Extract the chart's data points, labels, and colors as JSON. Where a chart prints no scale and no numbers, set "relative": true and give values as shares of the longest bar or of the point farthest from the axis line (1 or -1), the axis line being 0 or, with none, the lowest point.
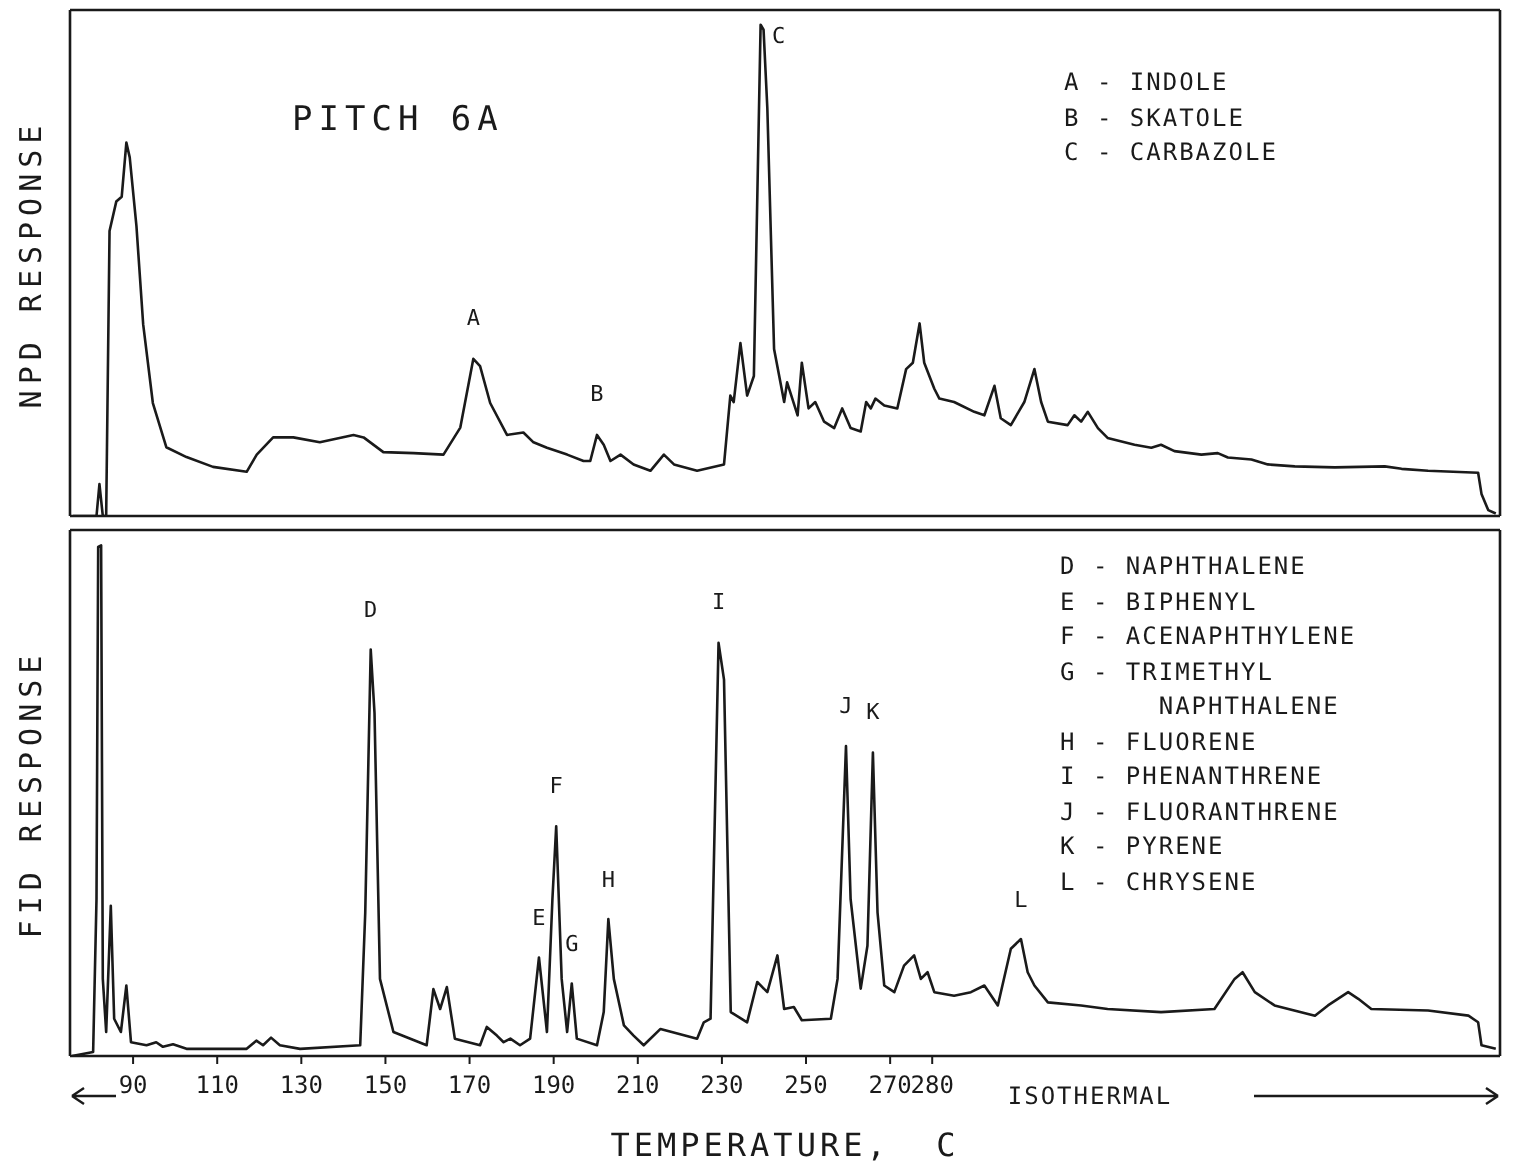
{
  "chart_data": [
    {
      "type": "line",
      "relative": true,
      "title": "PITCH 6A",
      "ylabel": "NPD RESPONSE",
      "color": "#1a1a1a",
      "xlim": [
        75,
        415
      ],
      "xticks": [
        90,
        110,
        130,
        150,
        170,
        190,
        210,
        230,
        250,
        270,
        280
      ],
      "tick_labels": false,
      "x": [
        75.7,
        81.3,
        82.0,
        82.8,
        83.6,
        84.4,
        86.0,
        87.3,
        88.4,
        89.2,
        90.8,
        92.4,
        94.7,
        97.9,
        102.7,
        109.0,
        117.0,
        119.4,
        123.3,
        128.1,
        134.4,
        142.4,
        144.8,
        149.5,
        156.7,
        163.8,
        167.8,
        170.9,
        172.5,
        174.9,
        178.9,
        182.8,
        185.2,
        188.4,
        193.2,
        197.1,
        198.7,
        200.3,
        201.9,
        203.5,
        205.9,
        209.0,
        213.0,
        216.2,
        218.6,
        224.1,
        230.5,
        232.0,
        232.8,
        234.4,
        236.0,
        237.6,
        239.2,
        239.9,
        240.8,
        242.4,
        244.8,
        245.5,
        248.0,
        249.0,
        250.6,
        252.2,
        254.3,
        256.7,
        258.6,
        260.6,
        263.0,
        264.3,
        265.4,
        266.5,
        268.6,
        271.7,
        273.8,
        275.4,
        277.0,
        278.1,
        280.5,
        281.7,
        285.2,
        290.0,
        292.4,
        294.8,
        296.3,
        298.7,
        301.9,
        304.3,
        305.9,
        307.5,
        312.2,
        313.8,
        315.4,
        317.0,
        319.4,
        321.7,
        328.1,
        332.1,
        334.4,
        337.6,
        344.0,
        347.9,
        350.3,
        355.9,
        359.8,
        366.2,
        375.7,
        387.6,
        391.6,
        397.9,
        409.8,
        410.6,
        412.2,
        414.0
      ],
      "values": [
        0,
        0,
        0.065,
        0,
        0,
        0.58,
        0.64,
        0.65,
        0.76,
        0.73,
        0.59,
        0.39,
        0.23,
        0.14,
        0.12,
        0.1,
        0.09,
        0.125,
        0.16,
        0.16,
        0.15,
        0.165,
        0.16,
        0.13,
        0.128,
        0.125,
        0.18,
        0.32,
        0.305,
        0.23,
        0.165,
        0.17,
        0.15,
        0.139,
        0.125,
        0.112,
        0.112,
        0.165,
        0.145,
        0.112,
        0.125,
        0.105,
        0.092,
        0.125,
        0.105,
        0.092,
        0.105,
        0.245,
        0.232,
        0.352,
        0.245,
        0.285,
        1,
        0.99,
        0.83,
        0.34,
        0.232,
        0.272,
        0.205,
        0.312,
        0.219,
        0.232,
        0.192,
        0.179,
        0.219,
        0.179,
        0.172,
        0.232,
        0.219,
        0.239,
        0.225,
        0.219,
        0.299,
        0.312,
        0.392,
        0.312,
        0.259,
        0.239,
        0.232,
        0.212,
        0.205,
        0.265,
        0.199,
        0.185,
        0.232,
        0.299,
        0.232,
        0.192,
        0.185,
        0.205,
        0.192,
        0.212,
        0.179,
        0.159,
        0.145,
        0.139,
        0.145,
        0.132,
        0.125,
        0.128,
        0.119,
        0.115,
        0.105,
        0.101,
        0.099,
        0.101,
        0.096,
        0.092,
        0.088,
        0.045,
        0.012,
        0.005
      ],
      "annotations": [
        "A - INDOLE",
        "B - SKATOLE",
        "C - CARBAZOLE",
        {
          "text": "A",
          "x": 170.9,
          "y": 0.32
        },
        {
          "text": "B",
          "x": 200.3,
          "y": 0.165
        },
        {
          "text": "C",
          "x": 239.2,
          "y": 1
        }
      ]
    },
    {
      "type": "line",
      "relative": true,
      "ylabel": "FID RESPONSE",
      "xlabel": "TEMPERATURE,  C",
      "color": "#1a1a1a",
      "xlim": [
        75,
        415
      ],
      "xticks": [
        90,
        110,
        130,
        150,
        170,
        190,
        210,
        230,
        250,
        270,
        280
      ],
      "tick_labels": "x",
      "x": [
        75.5,
        80.5,
        81.3,
        81.7,
        82.4,
        82.8,
        83.6,
        84.7,
        85.5,
        87.1,
        88.4,
        89.5,
        93.2,
        95.5,
        97.1,
        99.5,
        102.7,
        117.0,
        119.3,
        120.9,
        122.8,
        124.9,
        129.7,
        144.0,
        145.2,
        146.5,
        147.4,
        148.7,
        151.9,
        159.8,
        161.4,
        163.0,
        164.6,
        166.5,
        172.5,
        174.1,
        176.5,
        178.1,
        179.7,
        182.0,
        184.4,
        186.5,
        188.4,
        189.7,
        190.6,
        191.9,
        193.2,
        194.3,
        195.5,
        200.3,
        201.9,
        203.0,
        204.3,
        206.7,
        209.0,
        211.4,
        215.4,
        224.1,
        225.7,
        227.3,
        229.2,
        230.5,
        232.1,
        236.0,
        238.4,
        240.8,
        243.2,
        244.8,
        247.1,
        249.0,
        255.9,
        257.5,
        259.5,
        260.6,
        263.0,
        264.6,
        265.9,
        267.0,
        268.6,
        271.0,
        273.3,
        275.7,
        277.3,
        278.9,
        280.5,
        285.2,
        289.2,
        292.4,
        295.6,
        298.7,
        301.1,
        302.7,
        304.3,
        307.5,
        315.4,
        321.7,
        334.4,
        347.1,
        351.9,
        353.8,
        356.7,
        361.4,
        371.0,
        374.1,
        378.9,
        381.3,
        384.4,
        397.9,
        407.5,
        409.8,
        410.6,
        414.0
      ],
      "values": [
        0,
        0.008,
        0.307,
        0.997,
        1,
        0.151,
        0.047,
        0.294,
        0.073,
        0.047,
        0.138,
        0.027,
        0.021,
        0.027,
        0.018,
        0.023,
        0.014,
        0.014,
        0.03,
        0.021,
        0.036,
        0.021,
        0.014,
        0.021,
        0.281,
        0.796,
        0.672,
        0.151,
        0.047,
        0.021,
        0.131,
        0.092,
        0.135,
        0.034,
        0.021,
        0.057,
        0.04,
        0.027,
        0.034,
        0.021,
        0.034,
        0.193,
        0.047,
        0.307,
        0.45,
        0.151,
        0.047,
        0.142,
        0.034,
        0.021,
        0.086,
        0.268,
        0.151,
        0.06,
        0.04,
        0.021,
        0.053,
        0.034,
        0.066,
        0.073,
        0.809,
        0.737,
        0.086,
        0.066,
        0.145,
        0.125,
        0.197,
        0.092,
        0.096,
        0.07,
        0.073,
        0.151,
        0.607,
        0.307,
        0.132,
        0.216,
        0.594,
        0.281,
        0.138,
        0.125,
        0.177,
        0.197,
        0.151,
        0.164,
        0.125,
        0.118,
        0.125,
        0.138,
        0.099,
        0.21,
        0.229,
        0.164,
        0.138,
        0.105,
        0.099,
        0.092,
        0.086,
        0.092,
        0.151,
        0.164,
        0.125,
        0.099,
        0.079,
        0.099,
        0.125,
        0.112,
        0.092,
        0.089,
        0.079,
        0.066,
        0.021,
        0.014
      ],
      "annotations": [
        "ISOTHERMAL",
        "D - NAPHTHALENE",
        "E - BIPHENYL",
        "F - ACENAPHTHYLENE",
        "G - TRIMETHYL\n      NAPHTHALENE",
        "H - FLUORENE",
        "I - PHENANTHRENE",
        "J - FLUORANTHRENE",
        "K - PYRENE",
        "L - CHRYSENE",
        {
          "text": "D",
          "x": 146.5,
          "y": 0.796
        },
        {
          "text": "E",
          "x": 186.5,
          "y": 0.193
        },
        {
          "text": "F",
          "x": 190.6,
          "y": 0.45
        },
        {
          "text": "G",
          "x": 194.3,
          "y": 0.142
        },
        {
          "text": "H",
          "x": 203.0,
          "y": 0.268
        },
        {
          "text": "I",
          "x": 229.2,
          "y": 0.809
        },
        {
          "text": "J",
          "x": 259.5,
          "y": 0.607
        },
        {
          "text": "K",
          "x": 265.9,
          "y": 0.594
        },
        {
          "text": "L",
          "x": 301.1,
          "y": 0.229
        }
      ]
    }
  ]
}
